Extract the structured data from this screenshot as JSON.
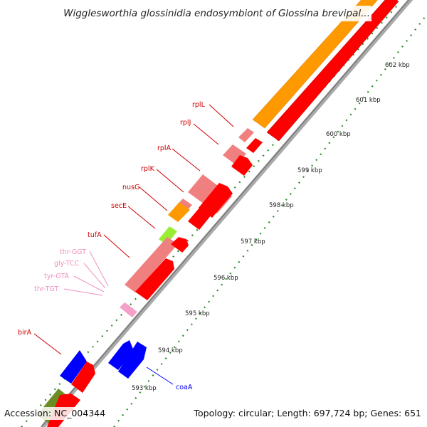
{
  "title": "Wigglesworthia glossinidia endosymbiont of Glossina brevipal...",
  "footer": {
    "accession": "Accession: NC_004344",
    "topology": "Topology: circular; Length: 697,724 bp; Genes: 651"
  },
  "colors": {
    "cds": "#ff0000",
    "cds_light": "#f08080",
    "trna": "#f4a0c8",
    "rrna_orange": "#ff9900",
    "blue_gene": "#0000ff",
    "olive_gene": "#6b8e23",
    "lime_gene": "#99ee33",
    "tick": "#2e7d32",
    "backbone": "#888888"
  },
  "scale_labels": [
    {
      "text": "593 kbp"
    },
    {
      "text": "594 kbp"
    },
    {
      "text": "595 kbp"
    },
    {
      "text": "596 kbp"
    },
    {
      "text": "597 kbp"
    },
    {
      "text": "598 kbp"
    },
    {
      "text": "599 kbp"
    },
    {
      "text": "600 kbp"
    },
    {
      "text": "601 kbp"
    },
    {
      "text": "602 kbp"
    }
  ],
  "gene_labels": [
    {
      "text": "rplL",
      "color": "#cc0000"
    },
    {
      "text": "rplJ",
      "color": "#cc0000"
    },
    {
      "text": "rplA",
      "color": "#cc0000"
    },
    {
      "text": "rplK",
      "color": "#cc0000"
    },
    {
      "text": "nusG",
      "color": "#cc0000"
    },
    {
      "text": "secE",
      "color": "#cc0000"
    },
    {
      "text": "tufA",
      "color": "#cc0000"
    },
    {
      "text": "thr-GGT",
      "color": "#f090c0"
    },
    {
      "text": "gly-TCC",
      "color": "#f090c0"
    },
    {
      "text": "tyr-GTA",
      "color": "#f090c0"
    },
    {
      "text": "thr-TGT",
      "color": "#f090c0"
    },
    {
      "text": "birA",
      "color": "#cc0000"
    },
    {
      "text": "coaA",
      "color": "#0000ff"
    }
  ]
}
